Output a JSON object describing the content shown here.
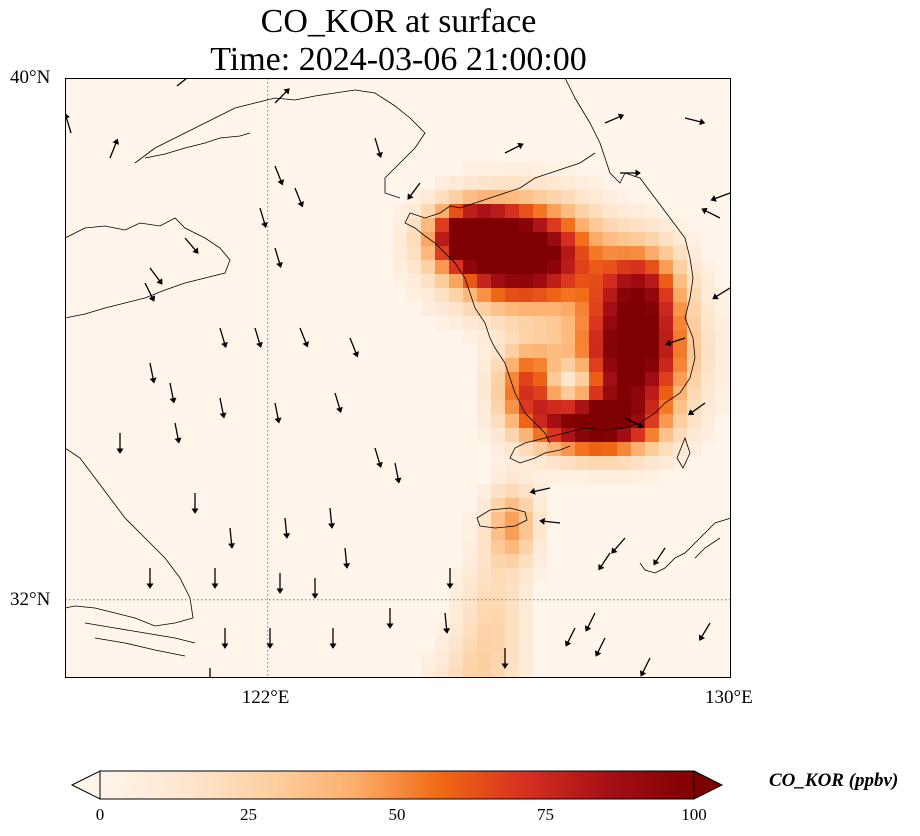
{
  "title": {
    "line1": "CO_KOR at surface",
    "line2": "Time: 2024-03-06 21:00:00"
  },
  "map": {
    "extent": {
      "lon": [
        118.5,
        130.0
      ],
      "lat": [
        30.8,
        40.0
      ]
    },
    "lat_ticks": [
      {
        "value": 40,
        "label": "40°N"
      },
      {
        "value": 32,
        "label": "32°N"
      }
    ],
    "lon_ticks": [
      {
        "value": 122,
        "label": "122°E"
      },
      {
        "value": 130,
        "label": "130°E"
      }
    ],
    "gridlines": "dotted",
    "background_color": "#fff5eb",
    "field": "CO_KOR",
    "units": "ppbv",
    "overlay": "wind vectors (black arrows, predominantly southward over sea, northwesterly near Korean peninsula)",
    "plume_description": "high CO concentrations (>75 ppbv) over western and southern Korean peninsula, plume extending south over Jeju toward lower boundary"
  },
  "colorbar": {
    "label": "CO_KOR (ppbv)",
    "min": 0,
    "max": 100,
    "extend": "both",
    "colormap": "OrRd",
    "ticks": [
      {
        "value": 0,
        "label": "0"
      },
      {
        "value": 25,
        "label": "25"
      },
      {
        "value": 50,
        "label": "50"
      },
      {
        "value": 75,
        "label": "75"
      },
      {
        "value": 100,
        "label": "100"
      }
    ],
    "colors": [
      "#fff5eb",
      "#fee6ce",
      "#fdd0a2",
      "#fdae6b",
      "#f16913",
      "#d7301f",
      "#a50f15",
      "#7f0000"
    ]
  }
}
